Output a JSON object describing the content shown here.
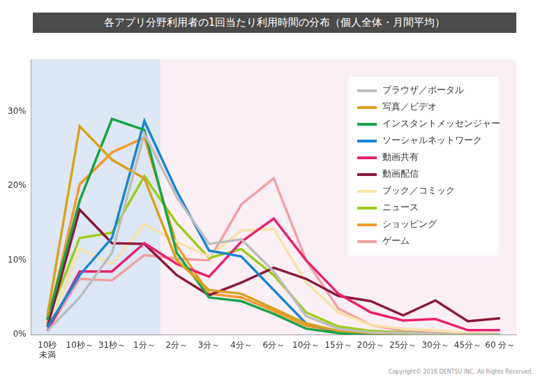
{
  "chart_data": {
    "type": "line",
    "title": "各アプリ分野利用者の1回当たり利用時間の分布（個人全体・月間平均）",
    "annotation": "Copyright© 2016 DENTSU INC. All Rights Reserved.",
    "categories": [
      "10秒\n未満",
      "10秒～",
      "31秒～",
      "1分～",
      "2分～",
      "3分～",
      "4分～",
      "6分～",
      "10分～",
      "15分～",
      "20分～",
      "25分～",
      "30分～",
      "45分～",
      "60 分～"
    ],
    "series": [
      {
        "name": "ブラウザ／ポータル",
        "color": "#bdbdbd",
        "values": [
          0.5,
          5,
          11,
          27,
          18.5,
          12.2,
          12.8,
          8.5,
          2.5,
          0.8,
          0.3,
          0.2,
          0.1,
          0,
          0
        ]
      },
      {
        "name": "写真／ビデオ",
        "color": "#d9a21c",
        "values": [
          2.5,
          28,
          23.5,
          21,
          10,
          6,
          5.5,
          3.5,
          1.5,
          0.5,
          0.2,
          0.1,
          0.1,
          0,
          0
        ]
      },
      {
        "name": "インスタントメッセンジャー",
        "color": "#1aa34a",
        "values": [
          2,
          18,
          29,
          27.5,
          11,
          5,
          4.5,
          2.8,
          0.8,
          0.2,
          0.1,
          0,
          0,
          0,
          0
        ]
      },
      {
        "name": "ソーシャルネットワーク",
        "color": "#1a86d0",
        "values": [
          1,
          8,
          13,
          28.7,
          19.3,
          11.3,
          10.5,
          6,
          1.5,
          0.4,
          0.1,
          0.1,
          0,
          0,
          0
        ]
      },
      {
        "name": "動画共有",
        "color": "#e8236e",
        "values": [
          0.5,
          8.5,
          8.5,
          12.3,
          9.5,
          7.8,
          12.5,
          15.6,
          10,
          5.5,
          3,
          1.9,
          2.1,
          0.6,
          0.6
        ]
      },
      {
        "name": "動画配信",
        "color": "#8b1a3a",
        "values": [
          1,
          16.8,
          12.3,
          12.2,
          8,
          5.3,
          7,
          9,
          7.5,
          5.2,
          4.5,
          2.6,
          4.6,
          1.8,
          2.2
        ]
      },
      {
        "name": "ブック／コミック",
        "color": "#f7e3a8",
        "values": [
          0.5,
          11.5,
          9.5,
          14.8,
          12.5,
          10.5,
          14,
          14.2,
          7,
          3,
          1.3,
          0.8,
          0.6,
          0.2,
          0.1
        ]
      },
      {
        "name": "ニュース",
        "color": "#9ccc1a",
        "values": [
          2,
          13,
          13.7,
          21.3,
          15,
          10.3,
          11.5,
          8,
          3,
          1.1,
          0.5,
          0.3,
          0.1,
          0,
          0
        ]
      },
      {
        "name": "ショッピング",
        "color": "#f39a2e",
        "values": [
          1.5,
          20.2,
          24.5,
          26.5,
          12,
          5.5,
          5,
          3.2,
          1.2,
          0.4,
          0.2,
          0.1,
          0.1,
          0,
          0
        ]
      },
      {
        "name": "ゲーム",
        "color": "#f4a0a0",
        "values": [
          0.5,
          7.5,
          7.3,
          10.7,
          10.2,
          10,
          17.5,
          21,
          10,
          3.5,
          1.3,
          0.5,
          0.2,
          0,
          0
        ]
      }
    ],
    "ylim": [
      0,
      37
    ],
    "yticks": [
      {
        "value": 0,
        "label": "0%"
      },
      {
        "value": 10,
        "label": "10%"
      },
      {
        "value": 20,
        "label": "20%"
      },
      {
        "value": 30,
        "label": "30%"
      }
    ],
    "grid": false,
    "legend": "upper right"
  }
}
